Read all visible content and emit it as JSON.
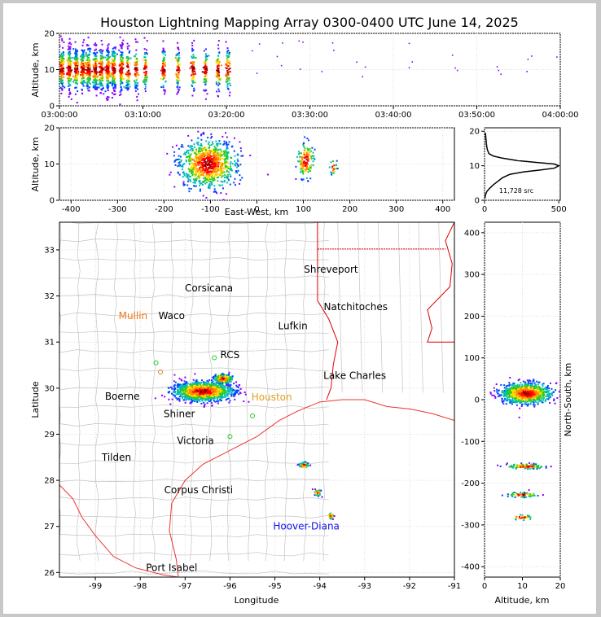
{
  "chart_data": [
    {
      "id": "time-altitude",
      "type": "scatter",
      "title": "Houston Lightning Mapping Array 0300-0400 UTC June 14, 2025",
      "xlabel": "",
      "ylabel": "Altitude, km",
      "xticks": [
        "03:00:00",
        "03:10:00",
        "03:20:00",
        "03:30:00",
        "03:40:00",
        "03:50:00",
        "04:00:00"
      ],
      "xlim_minutes": [
        0,
        60
      ],
      "ylim": [
        0,
        20
      ],
      "yticks": [
        0,
        10,
        20
      ],
      "bursts_minutes": [
        0.3,
        1.2,
        2.0,
        2.8,
        3.5,
        4.3,
        5.0,
        5.8,
        6.5,
        7.4,
        8.2,
        9.2,
        10.3,
        12.5,
        14.2,
        16.0,
        17.5,
        19.0,
        20.2
      ],
      "sparse_minutes": [
        22.5,
        25.0,
        27.5,
        31.0,
        35.0,
        41.0,
        46.0,
        51.0,
        55.0,
        59.0
      ]
    },
    {
      "id": "ew-altitude",
      "type": "scatter",
      "xlabel": "East-West, km",
      "ylabel": "Altitude, km",
      "xticks": [
        -400,
        -300,
        -200,
        -100,
        0,
        100,
        200,
        300,
        400
      ],
      "xlim": [
        -425,
        425
      ],
      "ylim": [
        0,
        20
      ],
      "yticks": [
        0,
        10,
        20
      ],
      "clusters": [
        {
          "x": -105,
          "y": 10,
          "sx": 30,
          "sy": 3.2,
          "n": 900
        },
        {
          "x": 105,
          "y": 11,
          "sx": 9,
          "sy": 2.5,
          "n": 140
        },
        {
          "x": 165,
          "y": 9,
          "sx": 4,
          "sy": 1,
          "n": 20
        }
      ]
    },
    {
      "id": "altitude-histogram",
      "type": "line",
      "xticks": [
        0,
        500
      ],
      "xlim": [
        0,
        510
      ],
      "ylim": [
        0,
        21
      ],
      "yticks": [
        0,
        10,
        20
      ],
      "annotation": "11,728 src",
      "points": [
        [
          2,
          0.5
        ],
        [
          6,
          1.5
        ],
        [
          15,
          2.5
        ],
        [
          35,
          3.5
        ],
        [
          60,
          4.5
        ],
        [
          90,
          5.5
        ],
        [
          120,
          6.5
        ],
        [
          170,
          7.5
        ],
        [
          260,
          8.2
        ],
        [
          380,
          8.8
        ],
        [
          470,
          9.3
        ],
        [
          500,
          10
        ],
        [
          470,
          10.5
        ],
        [
          360,
          10.9
        ],
        [
          220,
          11.5
        ],
        [
          120,
          12.2
        ],
        [
          60,
          12.8
        ],
        [
          30,
          13.5
        ],
        [
          20,
          14.5
        ],
        [
          15,
          15.5
        ],
        [
          12,
          16.5
        ],
        [
          10,
          17.5
        ],
        [
          8,
          18.5
        ],
        [
          6,
          19.5
        ]
      ]
    },
    {
      "id": "plan-view-map",
      "type": "scatter",
      "xlabel": "Longitude",
      "ylabel": "Latitude",
      "xticks": [
        -99,
        -98,
        -97,
        -96,
        -95,
        -94,
        -93,
        -92,
        -91
      ],
      "xlim": [
        -99.8,
        -91.0
      ],
      "ylim": [
        25.9,
        33.6
      ],
      "yticks": [
        26,
        27,
        28,
        29,
        30,
        31,
        32,
        33
      ],
      "cities": [
        {
          "name": "Shreveport",
          "lon": -93.75,
          "lat": 32.58,
          "color": "#000000"
        },
        {
          "name": "Corsicana",
          "lon": -96.47,
          "lat": 32.17,
          "color": "#000000"
        },
        {
          "name": "Natchitoches",
          "lon": -93.2,
          "lat": 31.76,
          "color": "#000000"
        },
        {
          "name": "Mullin",
          "lon": -98.16,
          "lat": 31.57,
          "color": "#f07818"
        },
        {
          "name": "Waco",
          "lon": -97.3,
          "lat": 31.57,
          "color": "#000000"
        },
        {
          "name": "Lufkin",
          "lon": -94.6,
          "lat": 31.35,
          "color": "#000000"
        },
        {
          "name": "RCS",
          "lon": -96.0,
          "lat": 30.72,
          "color": "#000000"
        },
        {
          "name": "Lake Charles",
          "lon": -93.22,
          "lat": 30.27,
          "color": "#000000"
        },
        {
          "name": "Boerne",
          "lon": -98.4,
          "lat": 29.82,
          "color": "#000000"
        },
        {
          "name": "Houston",
          "lon": -95.07,
          "lat": 29.8,
          "color": "#e0a020"
        },
        {
          "name": "Shiner",
          "lon": -97.13,
          "lat": 29.44,
          "color": "#000000"
        },
        {
          "name": "Victoria",
          "lon": -96.77,
          "lat": 28.86,
          "color": "#000000"
        },
        {
          "name": "Tilden",
          "lon": -98.53,
          "lat": 28.5,
          "color": "#000000"
        },
        {
          "name": "Corpus Christi",
          "lon": -96.7,
          "lat": 27.79,
          "color": "#000000"
        },
        {
          "name": "Hoover-Diana",
          "lon": -94.3,
          "lat": 27.0,
          "color": "#1010ee"
        },
        {
          "name": "Port Isabel",
          "lon": -97.3,
          "lat": 26.1,
          "color": "#000000"
        }
      ],
      "clusters": [
        {
          "lon": -96.6,
          "lat": 29.93,
          "slon": 0.32,
          "slat": 0.1,
          "n": 1300
        },
        {
          "lon": -96.15,
          "lat": 30.2,
          "slon": 0.1,
          "slat": 0.05,
          "n": 180
        },
        {
          "lon": -94.35,
          "lat": 28.33,
          "slon": 0.05,
          "slat": 0.03,
          "n": 70
        },
        {
          "lon": -94.05,
          "lat": 27.73,
          "slon": 0.04,
          "slat": 0.03,
          "n": 50
        },
        {
          "lon": -93.75,
          "lat": 27.23,
          "slon": 0.03,
          "slat": 0.03,
          "n": 35
        }
      ]
    },
    {
      "id": "altitude-northsouth",
      "type": "scatter",
      "xlabel": "Altitude, km",
      "ylabel": "North-South, km",
      "xticks": [
        0,
        10,
        20
      ],
      "xlim": [
        0,
        20
      ],
      "ylim": [
        -425,
        425
      ],
      "yticks": [
        -400,
        -300,
        -200,
        -100,
        0,
        100,
        200,
        300,
        400
      ],
      "clusters": [
        {
          "x": 11,
          "y": 15,
          "sx": 3.2,
          "sy": 12,
          "n": 900
        },
        {
          "x": 11,
          "y": -160,
          "sx": 2.5,
          "sy": 3,
          "n": 120
        },
        {
          "x": 10,
          "y": -228,
          "sx": 2,
          "sy": 3,
          "n": 60
        },
        {
          "x": 10,
          "y": -282,
          "sx": 1.5,
          "sy": 3,
          "n": 30
        }
      ]
    }
  ]
}
